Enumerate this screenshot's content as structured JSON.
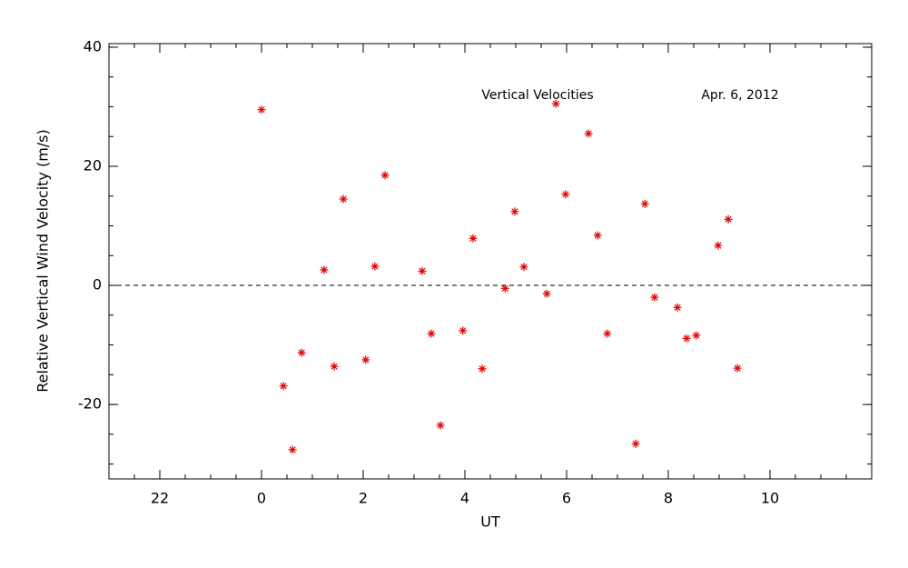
{
  "chart_data": {
    "type": "scatter",
    "xlabel": "UT",
    "ylabel": "Relative Vertical Wind Velocity (m/s)",
    "annotations": [
      "Vertical Velocities",
      "Apr. 6, 2012"
    ],
    "xlim": [
      -3,
      12
    ],
    "ylim": [
      -32.5,
      40.6
    ],
    "xticks": [
      {
        "value": -2,
        "label": "22"
      },
      0,
      2,
      4,
      6,
      8,
      10
    ],
    "yticks": [
      -20,
      0,
      20,
      40
    ],
    "hline": 0,
    "marker": "asterisk",
    "series": [
      {
        "color": "#e00000",
        "x": [
          0,
          0.43,
          0.61,
          0.79,
          1.23,
          1.43,
          1.61,
          2.05,
          2.23,
          2.43,
          3.16,
          3.34,
          3.52,
          3.96,
          4.16,
          4.34,
          4.79,
          4.98,
          5.16,
          5.61,
          5.79,
          5.98,
          6.43,
          6.61,
          6.8,
          7.36,
          7.54,
          7.73,
          8.18,
          8.36,
          8.55,
          8.98,
          9.18,
          9.36
        ],
        "values": [
          29.5,
          -16.9,
          -27.6,
          -11.3,
          2.6,
          -13.6,
          14.5,
          -12.5,
          3.2,
          18.5,
          2.4,
          -8.1,
          -23.5,
          -7.6,
          7.9,
          -14.0,
          -0.5,
          12.4,
          3.1,
          -1.4,
          30.5,
          15.3,
          25.5,
          8.4,
          -8.1,
          -26.6,
          13.7,
          -2.0,
          -3.7,
          -8.9,
          -8.4,
          6.7,
          11.1,
          -13.9
        ]
      }
    ]
  }
}
